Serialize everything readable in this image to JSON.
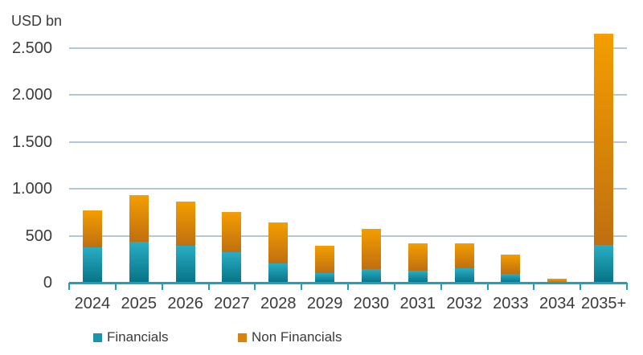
{
  "chart_data": {
    "type": "bar",
    "stacked": true,
    "title": "USD bn",
    "categories": [
      "2024",
      "2025",
      "2026",
      "2027",
      "2028",
      "2029",
      "2030",
      "2031",
      "2032",
      "2033",
      "2034",
      "2035+"
    ],
    "series": [
      {
        "name": "Financials",
        "color": "#1b93a8",
        "gradient_top": "#29aec4",
        "gradient_bottom": "#077286",
        "values": [
          380,
          440,
          395,
          325,
          205,
          100,
          145,
          130,
          155,
          95,
          0,
          400
        ]
      },
      {
        "name": "Non Financials",
        "color": "#d9820d",
        "gradient_top": "#f49e00",
        "gradient_bottom": "#bf6f10",
        "values": [
          390,
          490,
          470,
          425,
          440,
          295,
          430,
          290,
          260,
          200,
          45,
          2250
        ]
      }
    ],
    "xlabel": "",
    "ylabel": "USD bn",
    "ylim": [
      0,
      2500
    ],
    "yticks": {
      "values": [
        0,
        500,
        1000,
        1500,
        2000,
        2500
      ],
      "labels": [
        "0",
        "500",
        "1.000",
        "1.500",
        "2.000",
        "2.500"
      ]
    },
    "grid": true,
    "legend_position": "bottom",
    "colors": {
      "gridline": "#b4c7da",
      "axis": "#1ca0bc",
      "text": "#3b3b3b"
    }
  }
}
